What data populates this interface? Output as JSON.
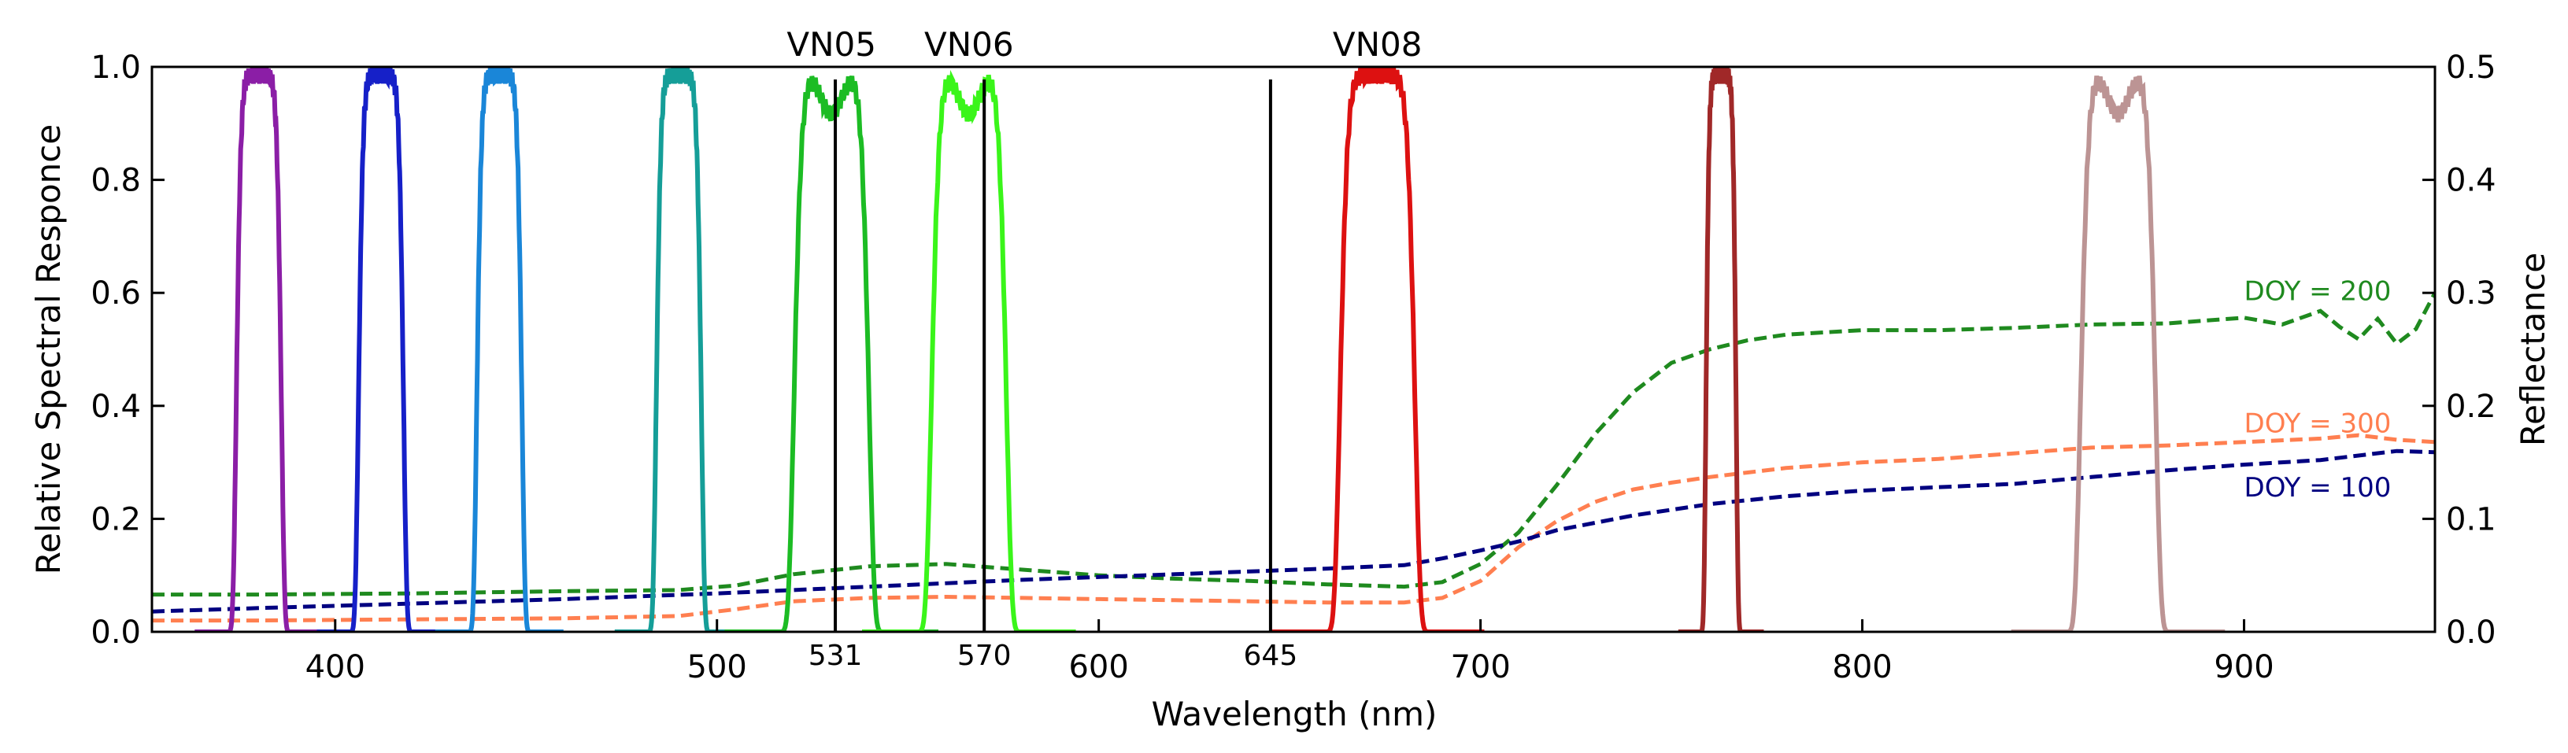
{
  "chart_data": {
    "type": "line",
    "xlabel": "Wavelength (nm)",
    "ylabel_left": "Relative Spectral Responce",
    "ylabel_right": "Reflectance",
    "xlim": [
      352,
      950
    ],
    "ylim_left": [
      0,
      1.0
    ],
    "ylim_right": [
      0,
      0.5
    ],
    "x_ticks": [
      400,
      500,
      600,
      700,
      800,
      900
    ],
    "y_ticks_left": [
      0.0,
      0.2,
      0.4,
      0.6,
      0.8,
      1.0
    ],
    "y_ticks_right": [
      0.0,
      0.1,
      0.2,
      0.3,
      0.4,
      0.5
    ],
    "bands": [
      {
        "center": 380,
        "width": 12,
        "color": "#8b1ea6"
      },
      {
        "center": 412,
        "width": 12,
        "color": "#1620c8"
      },
      {
        "center": 443,
        "width": 12,
        "color": "#1a86d8"
      },
      {
        "center": 490,
        "width": 12,
        "color": "#159e98"
      },
      {
        "center": 530,
        "width": 20,
        "color": "#1cbc24",
        "label": "VN05",
        "dip": true
      },
      {
        "center": 566,
        "width": 20,
        "color": "#3af51a",
        "label": "VN06",
        "dip": true
      },
      {
        "center": 673,
        "width": 20,
        "color": "#dd1111",
        "label": "VN08"
      },
      {
        "center": 763,
        "width": 8,
        "color": "#a02828"
      },
      {
        "center": 867,
        "width": 20,
        "color": "#bc9494",
        "dip": true
      }
    ],
    "markers": [
      {
        "x": 531,
        "label": "531"
      },
      {
        "x": 570,
        "label": "570"
      },
      {
        "x": 645,
        "label": "645"
      }
    ],
    "series": [
      {
        "name": "DOY = 200",
        "color": "#1f8a1f",
        "x": [
          352,
          380,
          420,
          460,
          490,
          505,
          520,
          540,
          560,
          580,
          600,
          620,
          640,
          660,
          680,
          690,
          700,
          710,
          720,
          730,
          740,
          750,
          760,
          770,
          780,
          800,
          820,
          840,
          860,
          880,
          900,
          910,
          920,
          925,
          930,
          935,
          940,
          945,
          950
        ],
        "values": [
          0.033,
          0.033,
          0.034,
          0.036,
          0.037,
          0.041,
          0.051,
          0.058,
          0.06,
          0.055,
          0.05,
          0.047,
          0.045,
          0.042,
          0.04,
          0.044,
          0.06,
          0.088,
          0.13,
          0.175,
          0.212,
          0.238,
          0.25,
          0.258,
          0.263,
          0.267,
          0.267,
          0.269,
          0.272,
          0.273,
          0.278,
          0.272,
          0.284,
          0.27,
          0.259,
          0.277,
          0.255,
          0.268,
          0.3
        ],
        "label_pos": {
          "x": 900,
          "y": 0.302
        }
      },
      {
        "name": "DOY = 300",
        "color": "#ff7f50",
        "x": [
          352,
          380,
          420,
          460,
          490,
          505,
          520,
          540,
          560,
          580,
          600,
          620,
          640,
          660,
          680,
          690,
          700,
          710,
          720,
          730,
          740,
          750,
          760,
          770,
          780,
          800,
          820,
          840,
          860,
          880,
          900,
          920,
          930,
          940,
          950
        ],
        "values": [
          0.01,
          0.01,
          0.011,
          0.012,
          0.014,
          0.02,
          0.027,
          0.03,
          0.031,
          0.03,
          0.029,
          0.028,
          0.027,
          0.026,
          0.026,
          0.03,
          0.045,
          0.075,
          0.098,
          0.115,
          0.126,
          0.132,
          0.137,
          0.141,
          0.145,
          0.15,
          0.153,
          0.158,
          0.163,
          0.165,
          0.168,
          0.171,
          0.174,
          0.17,
          0.168
        ],
        "label_pos": {
          "x": 900,
          "y": 0.185
        }
      },
      {
        "name": "DOY = 100",
        "color": "#000080",
        "x": [
          352,
          380,
          420,
          460,
          500,
          540,
          580,
          620,
          660,
          680,
          690,
          700,
          710,
          720,
          740,
          760,
          780,
          800,
          820,
          840,
          860,
          880,
          900,
          920,
          940,
          950
        ],
        "values": [
          0.018,
          0.021,
          0.025,
          0.029,
          0.034,
          0.04,
          0.046,
          0.051,
          0.056,
          0.059,
          0.065,
          0.072,
          0.08,
          0.09,
          0.103,
          0.113,
          0.12,
          0.125,
          0.128,
          0.131,
          0.137,
          0.143,
          0.148,
          0.152,
          0.16,
          0.159
        ],
        "label_pos": {
          "x": 900,
          "y": 0.128
        }
      }
    ]
  }
}
